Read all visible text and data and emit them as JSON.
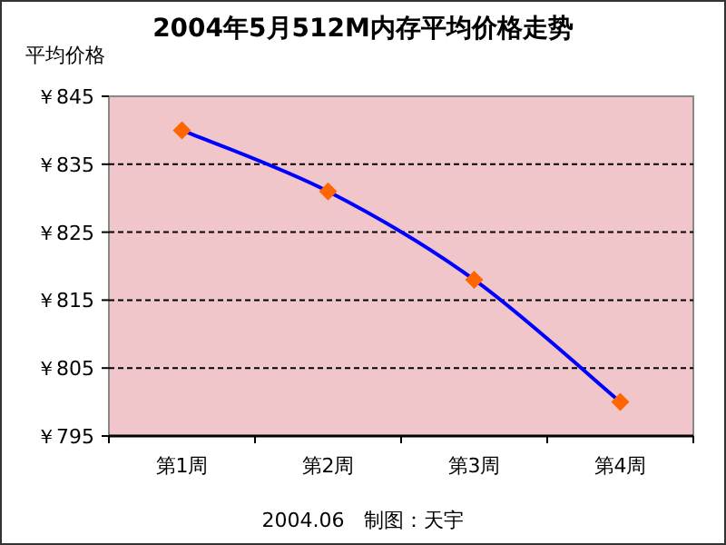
{
  "chart_data": {
    "type": "line",
    "title": "2004年5月512M内存平均价格走势",
    "ylabel": "平均价格",
    "categories": [
      "第1周",
      "第2周",
      "第3周",
      "第4周"
    ],
    "series": [
      {
        "color": "#0000ff",
        "colors": [
          "#ff6600",
          "#ff6600",
          "#ff6600",
          "#ff6600"
        ],
        "values": [
          840,
          831,
          818,
          800
        ]
      }
    ],
    "marker": "diamond",
    "line_style": "solid",
    "grid": "y",
    "ylim": [
      795,
      845
    ],
    "yticks": [
      {
        "value": 795,
        "label": "￥795"
      },
      {
        "value": 805,
        "label": "￥805"
      },
      {
        "value": 815,
        "label": "￥815"
      },
      {
        "value": 825,
        "label": "￥825"
      },
      {
        "value": 835,
        "label": "￥835"
      },
      {
        "value": 845,
        "label": "￥845"
      }
    ],
    "annotations": [
      "2004.06　制图：天宇"
    ]
  }
}
